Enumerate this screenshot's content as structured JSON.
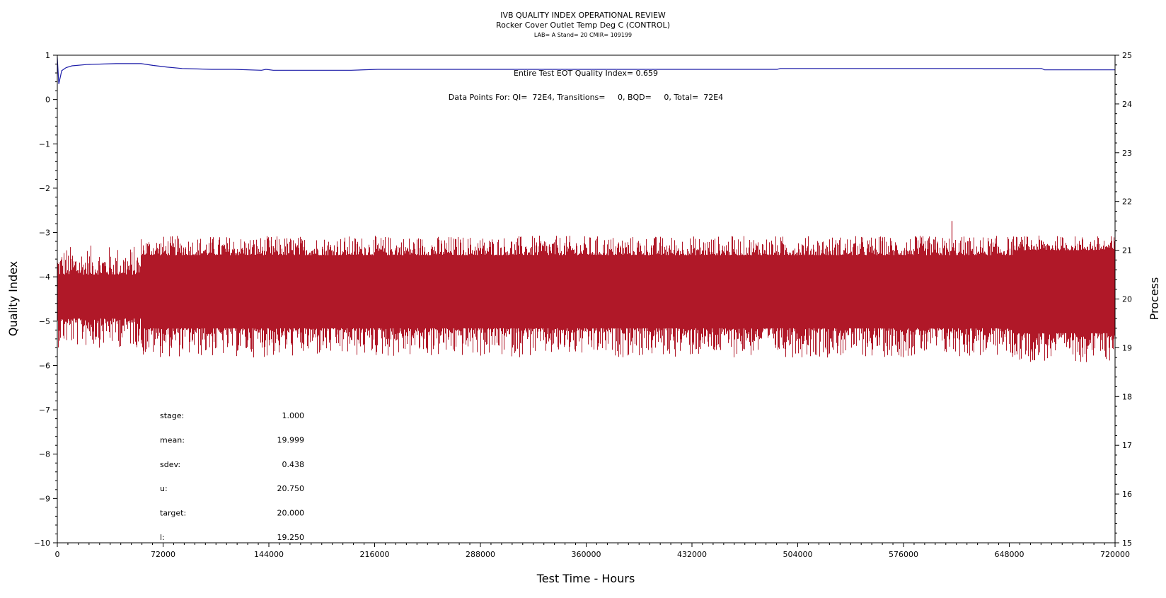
{
  "chart_data": {
    "type": "line",
    "title": "IVB QUALITY INDEX OPERATIONAL REVIEW",
    "subtitle": "Rocker Cover Outlet Temp Deg C (CONTROL)",
    "subtitle2": "LAB= A Stand= 20 CMIR= 109199",
    "xlabel": "Test Time - Hours",
    "ylabel_left": "Quality Index",
    "ylabel_right": "Process",
    "xlim": [
      0,
      720000
    ],
    "ylim_left": [
      -10,
      1
    ],
    "ylim_right": [
      15,
      25
    ],
    "x_ticks": [
      "0",
      "72000",
      "144000",
      "216000",
      "288000",
      "360000",
      "432000",
      "504000",
      "576000",
      "648000",
      "720000"
    ],
    "y_left_ticks": [
      "1",
      "0",
      "-1",
      "-2",
      "-3",
      "-4",
      "-5",
      "-6",
      "-7",
      "-8",
      "-9",
      "-10"
    ],
    "y_right_ticks": [
      "25",
      "24",
      "23",
      "22",
      "21",
      "20",
      "19",
      "18",
      "17",
      "16",
      "15"
    ],
    "annotation_qi": "Entire Test EOT Quality Index=   0.659",
    "annotation_points": "Data Points For: QI=  72E4, Transitions=     0, BQD=     0, Total=  72E4",
    "series": [
      {
        "name": "Quality Index",
        "axis": "left",
        "color": "#1c1ca8",
        "x": [
          0,
          1000,
          3000,
          6000,
          10000,
          20000,
          30000,
          40000,
          50000,
          57000,
          65000,
          75000,
          85000,
          95000,
          105000,
          120000,
          139000,
          142000,
          147000,
          152000,
          200000,
          218000,
          300000,
          400000,
          490000,
          492000,
          560000,
          650000,
          670000,
          672000,
          720000
        ],
        "y": [
          0.95,
          0.35,
          0.65,
          0.72,
          0.76,
          0.79,
          0.8,
          0.81,
          0.81,
          0.81,
          0.77,
          0.73,
          0.7,
          0.69,
          0.68,
          0.68,
          0.66,
          0.68,
          0.66,
          0.66,
          0.66,
          0.68,
          0.68,
          0.68,
          0.68,
          0.7,
          0.7,
          0.7,
          0.7,
          0.67,
          0.67
        ]
      },
      {
        "name": "Process",
        "axis": "right",
        "color": "#b01828",
        "segments": [
          {
            "x_start": 0,
            "x_end": 57000,
            "low": 19.6,
            "high": 20.5,
            "min": 19.0,
            "max": 21.1
          },
          {
            "x_start": 57000,
            "x_end": 650000,
            "low": 19.4,
            "high": 20.9,
            "min": 18.8,
            "max": 21.3
          },
          {
            "x_start": 650000,
            "x_end": 720000,
            "low": 19.3,
            "high": 21.0,
            "min": 18.7,
            "max": 21.3
          }
        ],
        "peak": {
          "x": 609000,
          "y": 21.6
        }
      }
    ],
    "stats": [
      {
        "label": "stage:",
        "value": "1.000"
      },
      {
        "label": "mean:",
        "value": "19.999"
      },
      {
        "label": "sdev:",
        "value": "0.438"
      },
      {
        "label": "u:",
        "value": "20.750"
      },
      {
        "label": "target:",
        "value": "20.000"
      },
      {
        "label": "l:",
        "value": "19.250"
      }
    ]
  }
}
